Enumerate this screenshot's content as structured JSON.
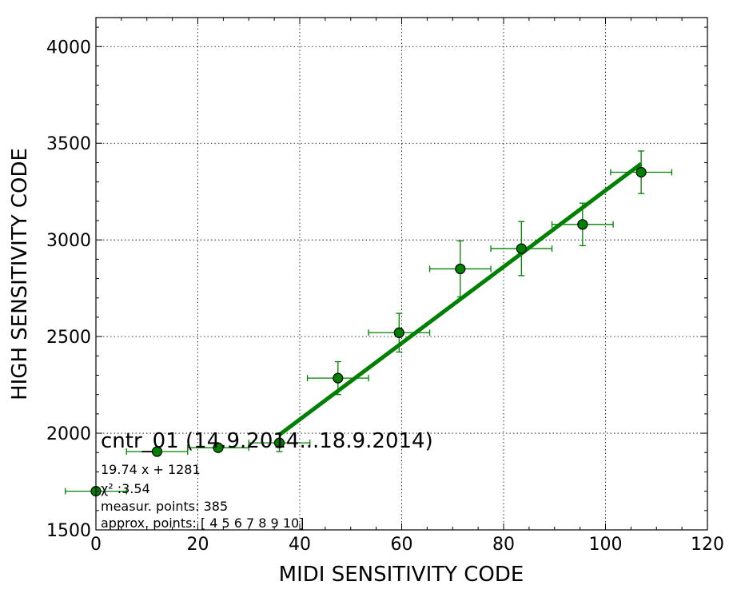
{
  "chart_data": {
    "type": "scatter",
    "xlabel": "MIDI SENSITIVITY CODE",
    "ylabel": "HIGH SENSITIVITY CODE",
    "xlim": [
      0,
      120
    ],
    "ylim": [
      1500,
      4150
    ],
    "xticks": [
      0,
      20,
      40,
      60,
      80,
      100,
      120
    ],
    "yticks": [
      1500,
      2000,
      2500,
      3000,
      3500,
      4000
    ],
    "grid": true,
    "series": [
      {
        "points": [
          {
            "x": 0,
            "y": 1700,
            "xerr": 6,
            "yerr": 0
          },
          {
            "x": 12,
            "y": 1905,
            "xerr": 6,
            "yerr": 0
          },
          {
            "x": 24,
            "y": 1925,
            "xerr": 6,
            "yerr": 0
          },
          {
            "x": 36,
            "y": 1950,
            "xerr": 6,
            "yerr": 45
          },
          {
            "x": 47.5,
            "y": 2285,
            "xerr": 6,
            "yerr": 85
          },
          {
            "x": 59.5,
            "y": 2520,
            "xerr": 6,
            "yerr": 100
          },
          {
            "x": 71.5,
            "y": 2850,
            "xerr": 6,
            "yerr": 145
          },
          {
            "x": 83.5,
            "y": 2955,
            "xerr": 6,
            "yerr": 140
          },
          {
            "x": 95.5,
            "y": 3080,
            "xerr": 6,
            "yerr": 110
          },
          {
            "x": 107,
            "y": 3350,
            "xerr": 6,
            "yerr": 110
          }
        ],
        "color": "#008000"
      }
    ],
    "fit": {
      "x": [
        36,
        107
      ],
      "y": [
        1992,
        3394
      ],
      "color": "#008000"
    },
    "annotation": {
      "title": "cntr_01 (14.9.2014...18.9.2014)",
      "lines": [
        "19.74 x + 1281",
        "χ² :3.54",
        "measur. points: 385",
        "approx. points: [ 4  5  6  7  8  9 10]"
      ]
    }
  }
}
